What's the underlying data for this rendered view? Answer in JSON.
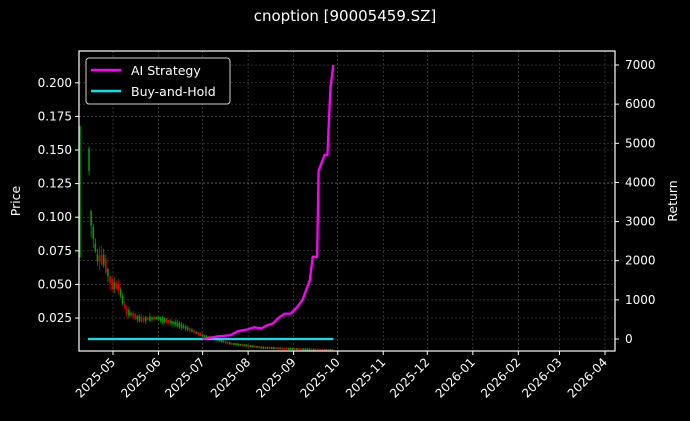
{
  "chart_data": {
    "type": "candlestick+line",
    "title": "cnoption [90005459.SZ]",
    "xlabel": "",
    "ylabel_left": "Price",
    "ylabel_right": "Return",
    "x_ticks": [
      "2025-05",
      "2025-06",
      "2025-07",
      "2025-08",
      "2025-09",
      "2025-10",
      "2025-11",
      "2025-12",
      "2026-01",
      "2026-02",
      "2026-03",
      "2026-04"
    ],
    "y_left_ticks": [
      0.025,
      0.05,
      0.075,
      0.1,
      0.125,
      0.15,
      0.175,
      0.2
    ],
    "y_left_tick_labels": [
      "0.025",
      "0.050",
      "0.075",
      "0.100",
      "0.125",
      "0.150",
      "0.175",
      "0.200"
    ],
    "y_right_ticks": [
      0,
      1000,
      2000,
      3000,
      4000,
      5000,
      6000,
      7000
    ],
    "y_right_tick_labels": [
      "0",
      "1000",
      "2000",
      "3000",
      "4000",
      "5000",
      "6000",
      "7000"
    ],
    "ylim_left": [
      0.0,
      0.224
    ],
    "ylim_right": [
      -300,
      7300
    ],
    "grid": true,
    "legend": {
      "position": "upper left",
      "entries": [
        "AI Strategy",
        "Buy-and-Hold"
      ]
    },
    "series": [
      {
        "name": "AI Strategy",
        "color": "#ff00ff",
        "axis": "right",
        "x": [
          "2025-07-01",
          "2025-07-10",
          "2025-07-20",
          "2025-07-25",
          "2025-08-01",
          "2025-08-05",
          "2025-08-10",
          "2025-08-14",
          "2025-08-18",
          "2025-08-22",
          "2025-08-26",
          "2025-08-30",
          "2025-09-03",
          "2025-09-07",
          "2025-09-09",
          "2025-09-12",
          "2025-09-14",
          "2025-09-17",
          "2025-09-18",
          "2025-09-21",
          "2025-09-22",
          "2025-09-24",
          "2025-09-26",
          "2025-09-28"
        ],
        "values": [
          0,
          60,
          100,
          200,
          250,
          300,
          270,
          350,
          400,
          550,
          650,
          650,
          800,
          1000,
          1200,
          1500,
          2100,
          2100,
          4300,
          4600,
          4700,
          4700,
          6400,
          7000
        ]
      },
      {
        "name": "Buy-and-Hold",
        "color": "#00e5ee",
        "axis": "right",
        "x": [
          "2025-04-14",
          "2025-09-28"
        ],
        "values": [
          0,
          0
        ]
      }
    ],
    "candles": {
      "up_color": "#00a000",
      "down_color": "#e00000",
      "axis": "left",
      "approx_close_path": [
        {
          "date": "2025-04-14",
          "price": 0.165
        },
        {
          "date": "2025-04-16",
          "price": 0.1
        },
        {
          "date": "2025-04-20",
          "price": 0.07
        },
        {
          "date": "2025-04-25",
          "price": 0.068
        },
        {
          "date": "2025-04-30",
          "price": 0.05
        },
        {
          "date": "2025-05-05",
          "price": 0.048
        },
        {
          "date": "2025-05-10",
          "price": 0.03
        },
        {
          "date": "2025-05-20",
          "price": 0.024
        },
        {
          "date": "2025-06-01",
          "price": 0.025
        },
        {
          "date": "2025-06-15",
          "price": 0.02
        },
        {
          "date": "2025-07-01",
          "price": 0.012
        },
        {
          "date": "2025-07-20",
          "price": 0.006
        },
        {
          "date": "2025-08-10",
          "price": 0.003
        },
        {
          "date": "2025-09-01",
          "price": 0.002
        },
        {
          "date": "2025-09-28",
          "price": 0.001
        }
      ]
    }
  },
  "legend": {
    "items": [
      {
        "label": "AI Strategy",
        "color": "#ff00ff"
      },
      {
        "label": "Buy-and-Hold",
        "color": "#00e5ee"
      }
    ]
  },
  "axes": {
    "left_label": "Price",
    "right_label": "Return"
  },
  "title": "cnoption [90005459.SZ]"
}
